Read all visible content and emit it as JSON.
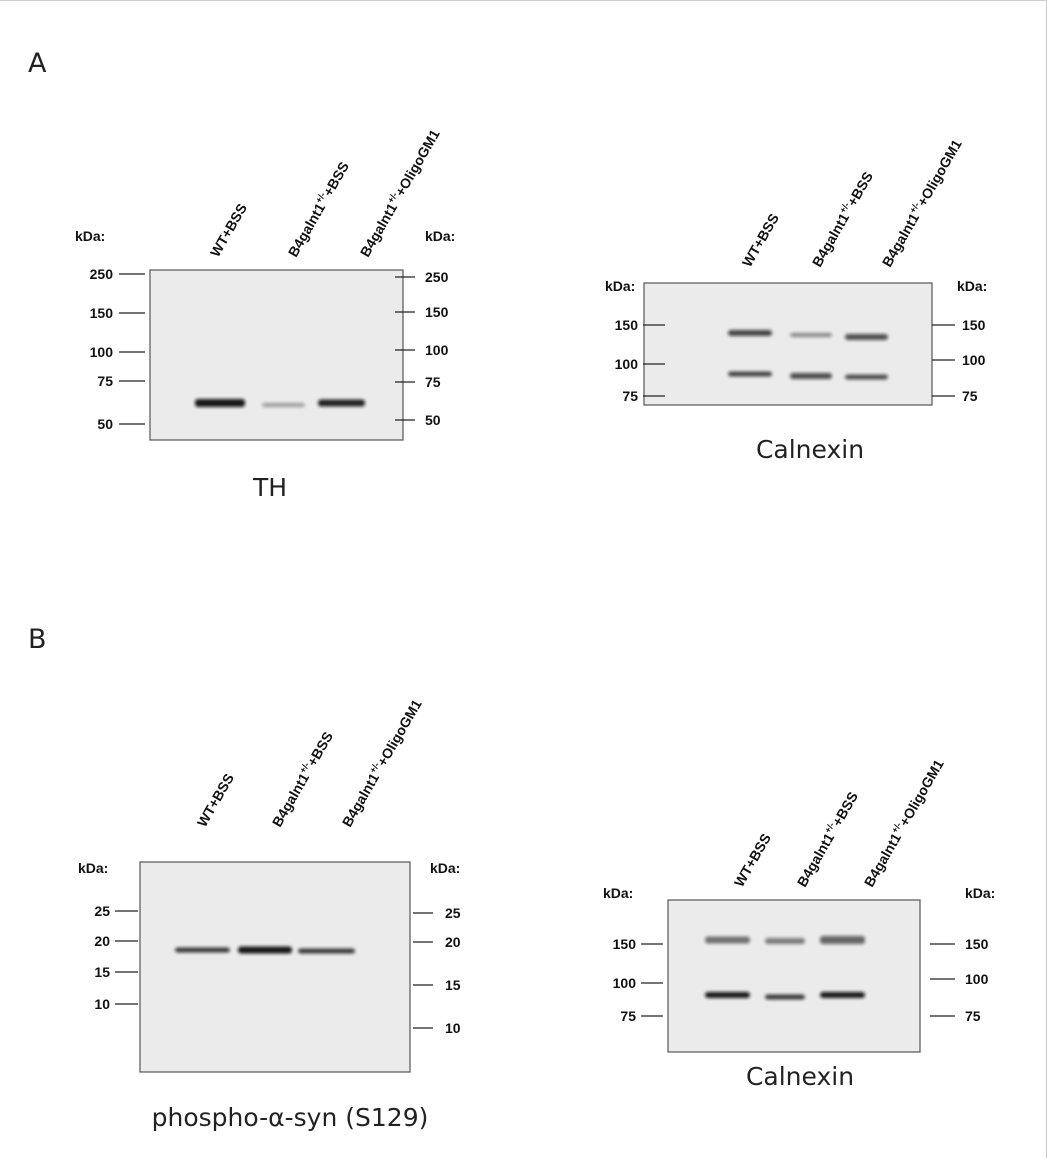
{
  "sections": [
    {
      "letter": "A",
      "blots": [
        {
          "lanes": [
            {
              "base": "WT+BSS"
            },
            {
              "base": "B4galnt1",
              "sup": "+/-",
              "suffix": "+BSS"
            },
            {
              "base": "B4galnt1",
              "sup": "+/-",
              "suffix": "+OligoGM1"
            }
          ],
          "kda_left": "kDa:",
          "kda_right": "kDa:",
          "markers_left": [
            250,
            150,
            100,
            75,
            50
          ],
          "markers_right": [
            250,
            150,
            100,
            75,
            50
          ],
          "caption": "TH"
        },
        {
          "lanes": [
            {
              "base": "WT+BSS"
            },
            {
              "base": "B4galnt1",
              "sup": "+/-",
              "suffix": "+BSS"
            },
            {
              "base": "B4galnt1",
              "sup": "+/-",
              "suffix": "+OligoGM1"
            }
          ],
          "kda_left": "kDa:",
          "kda_right": "kDa:",
          "markers_left": [
            150,
            100,
            75
          ],
          "markers_right": [
            150,
            100,
            75
          ],
          "caption": "Calnexin"
        }
      ]
    },
    {
      "letter": "B",
      "blots": [
        {
          "lanes": [
            {
              "base": "WT+BSS"
            },
            {
              "base": "B4galnt1",
              "sup": "+/-",
              "suffix": "+BSS"
            },
            {
              "base": "B4galnt1",
              "sup": "+/-",
              "suffix": "+OligoGM1"
            }
          ],
          "kda_left": "kDa:",
          "kda_right": "kDa:",
          "markers_left": [
            25,
            20,
            15,
            10
          ],
          "markers_right": [
            25,
            20,
            15,
            10
          ],
          "caption": "phospho-α-syn (S129)"
        },
        {
          "lanes": [
            {
              "base": "WT+BSS"
            },
            {
              "base": "B4galnt1",
              "sup": "+/-",
              "suffix": "+BSS"
            },
            {
              "base": "B4galnt1",
              "sup": "+/-",
              "suffix": "+OligoGM1"
            }
          ],
          "kda_left": "kDa:",
          "kda_right": "kDa:",
          "markers_left": [
            150,
            100,
            75
          ],
          "markers_right": [
            150,
            100,
            75
          ],
          "caption": "Calnexin"
        }
      ]
    }
  ]
}
